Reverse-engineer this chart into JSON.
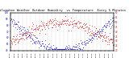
{
  "title": "Milwaukee Weather Outdoor Humidity  vs Temperature  Every 5 Minutes",
  "title_fontsize": 2.8,
  "background_color": "#ffffff",
  "grid_color": "#bbbbbb",
  "humidity_color": "#0000cc",
  "temp_color": "#cc0000",
  "ylim_humidity": [
    40,
    100
  ],
  "ylim_temp": [
    20,
    60
  ],
  "hum_ticks": [
    40,
    50,
    60,
    70,
    80,
    90,
    100
  ],
  "temp_ticks": [
    20,
    25,
    30,
    35,
    40,
    45,
    50,
    55,
    60
  ],
  "n_points": 288,
  "tick_fontsize": 2.0,
  "xtick_fontsize": 1.6
}
